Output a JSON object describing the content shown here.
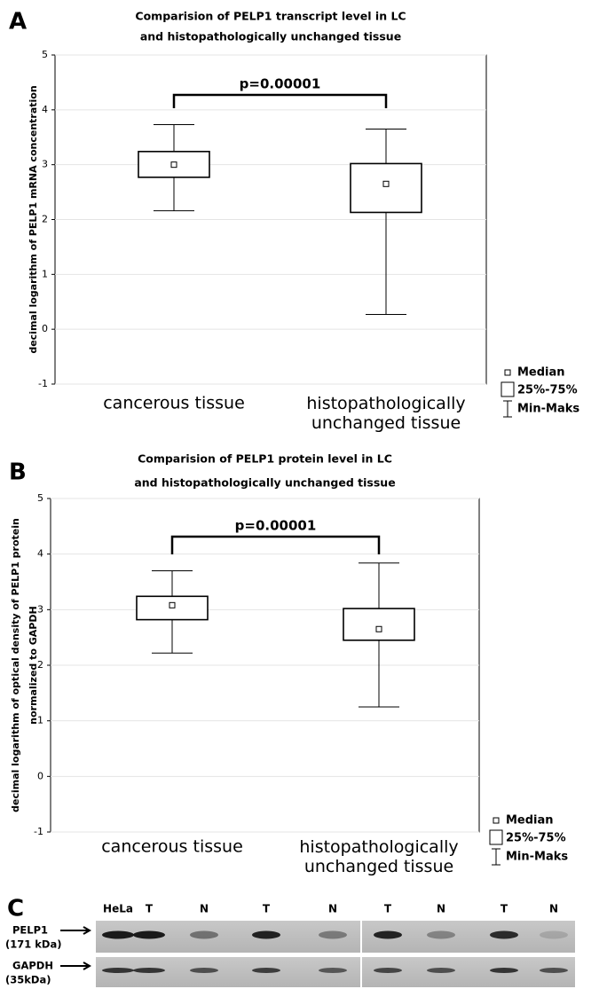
{
  "chart_data": [
    {
      "type": "box",
      "panel_label": "A",
      "title": [
        "Comparision of PELP1 transcript level in LC",
        "and histopathologically unchanged tissue"
      ],
      "y_label": [
        "decimal logarithm of PELP1 mRNA concentration"
      ],
      "categories": [
        "cancerous tissue",
        "histopathologically unchanged tissue"
      ],
      "min": [
        2.16,
        0.27
      ],
      "q1": [
        2.77,
        2.13
      ],
      "median": [
        3.0,
        2.65
      ],
      "q3": [
        3.24,
        3.02
      ],
      "max": [
        3.73,
        3.65
      ],
      "color": "#000000",
      "ylim": [
        -1,
        5
      ],
      "yticks": [
        -1,
        0,
        1,
        2,
        3,
        4,
        5
      ],
      "grid": true,
      "annotation": "p=0.00001",
      "legend": {
        "median": "Median",
        "box": "25%-75%",
        "whisker": "Min-Maks"
      }
    },
    {
      "type": "box",
      "panel_label": "B",
      "title": [
        "Comparision of PELP1 protein level in LC",
        "and histopathologically unchanged tissue"
      ],
      "y_label": [
        "decimal logarithm of optical density of PELP1 protein",
        "normalized to GAPDH"
      ],
      "categories": [
        "cancerous tissue",
        "histopathologically unchanged tissue"
      ],
      "min": [
        2.22,
        1.25
      ],
      "q1": [
        2.82,
        2.45
      ],
      "median": [
        3.08,
        2.65
      ],
      "q3": [
        3.24,
        3.02
      ],
      "max": [
        3.7,
        3.84
      ],
      "color": "#000000",
      "ylim": [
        -1,
        5
      ],
      "yticks": [
        -1,
        0,
        1,
        2,
        3,
        4,
        5
      ],
      "grid": true,
      "annotation": "p=0.00001",
      "legend": {
        "median": "Median",
        "box": "25%-75%",
        "whisker": "Min-Maks"
      }
    }
  ],
  "blot": {
    "panel_label": "C",
    "lanes": [
      "HeLa",
      "T",
      "N",
      "T",
      "N",
      "T",
      "N",
      "T",
      "N"
    ],
    "rows": [
      [
        "PELP1",
        "(171 kDa)"
      ],
      [
        "GAPDH",
        "(35kDa)"
      ]
    ]
  }
}
